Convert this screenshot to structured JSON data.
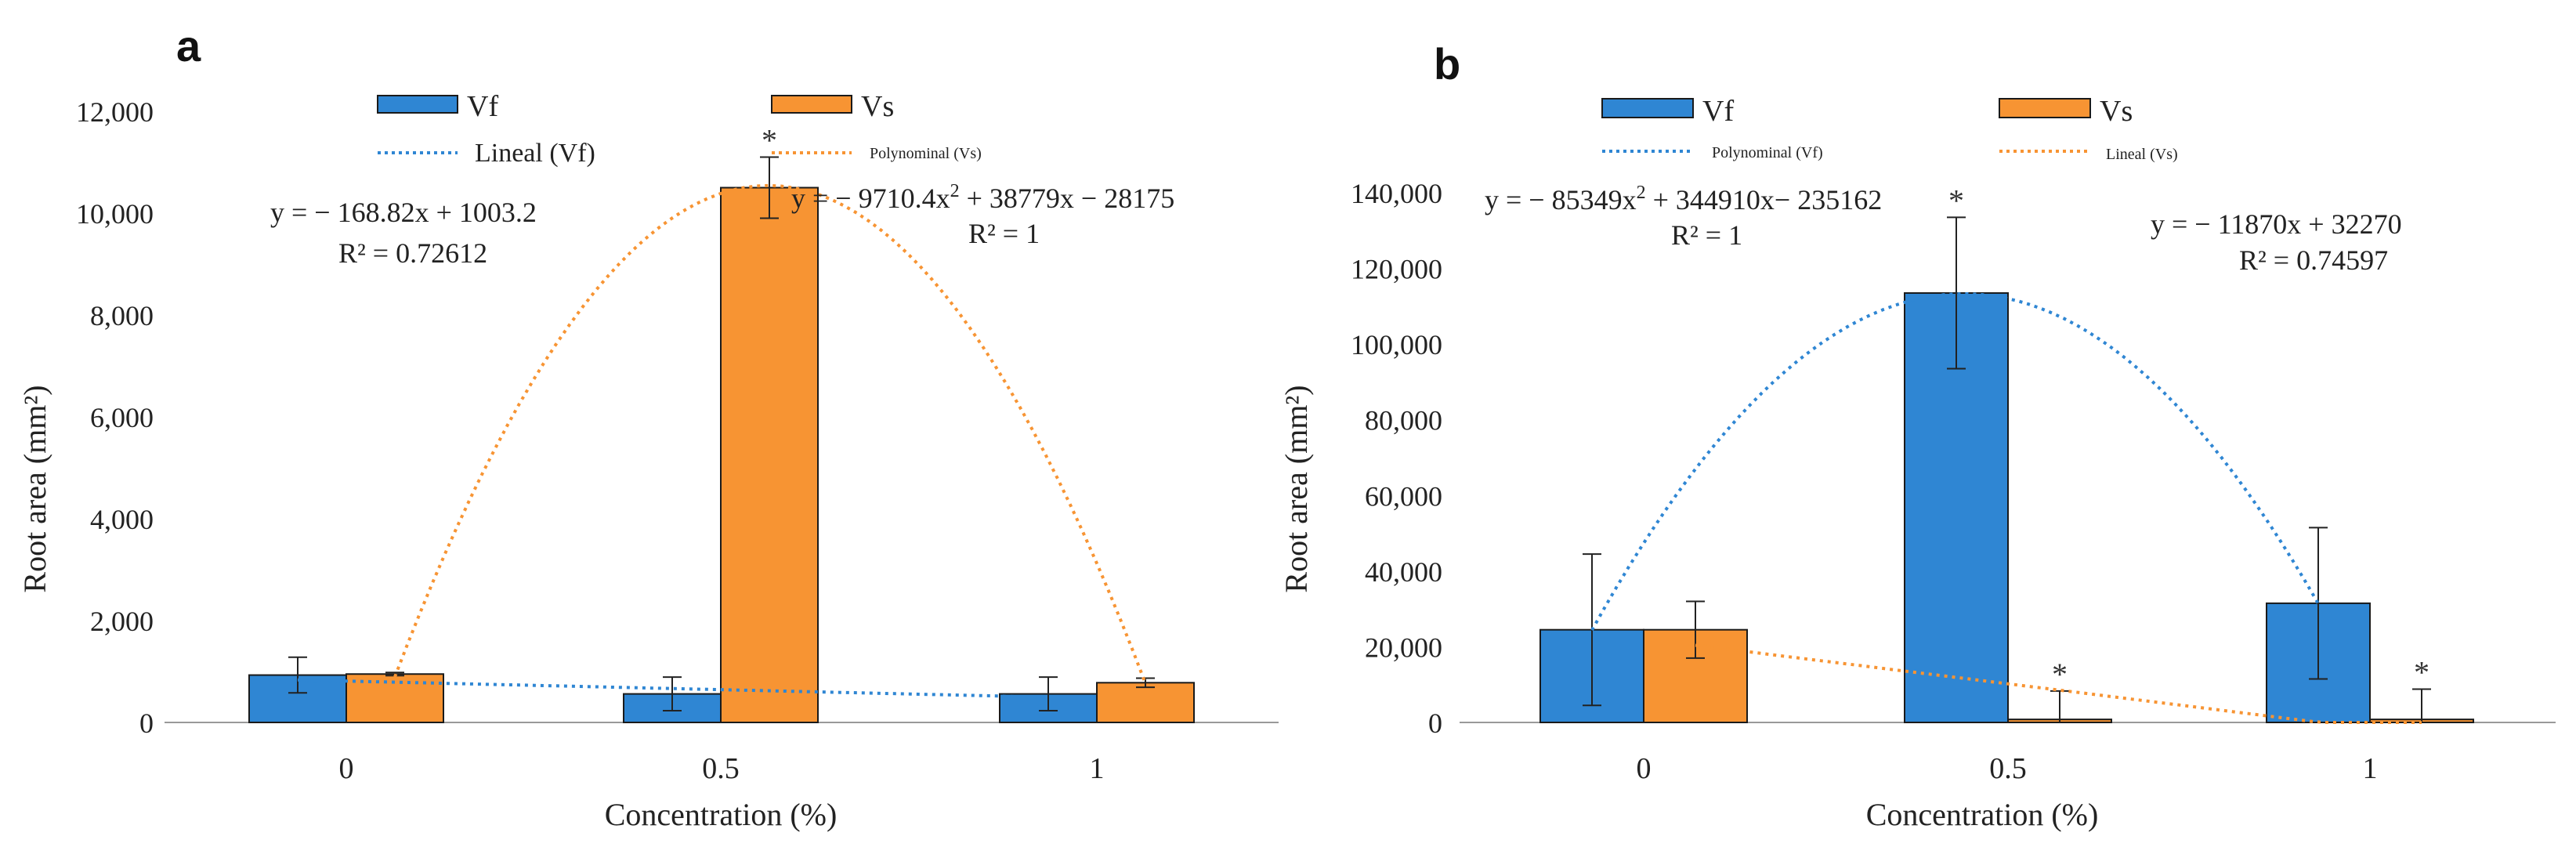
{
  "colors": {
    "vf": "#2F86D3",
    "vs": "#F79433",
    "axis": "#999999",
    "text": "#222222"
  },
  "chart_data": [
    {
      "panel_label": "a",
      "type": "bar",
      "categories": [
        "0",
        "0.5",
        "1"
      ],
      "ylim": [
        0,
        12000
      ],
      "yticks": [
        0,
        2000,
        4000,
        6000,
        8000,
        10000,
        12000
      ],
      "ytick_labels": [
        "0",
        "2,000",
        "4,000",
        "6,000",
        "8,000",
        "10,000",
        "12,000"
      ],
      "xlabel": "Concentration (%)",
      "ylabel": "Root area (mm²)",
      "series": [
        {
          "name": "Vf",
          "color": "#2F86D3",
          "values": [
            930,
            560,
            560
          ],
          "errors": [
            350,
            330,
            330
          ],
          "significance": [
            "",
            "",
            ""
          ]
        },
        {
          "name": "Vs",
          "color": "#F79433",
          "values": [
            950,
            10500,
            780
          ],
          "errors": [
            30,
            600,
            90
          ],
          "significance": [
            "",
            "*",
            ""
          ]
        }
      ],
      "trendlines": [
        {
          "name": "Lineal (Vf)",
          "series": "Vf",
          "kind": "linear",
          "color": "#2F86D3",
          "coef": [
            1003.2,
            -168.82
          ],
          "equation": {
            "prefix": "y = − 168.82x + 1003.2",
            "sup": "",
            "suffix": ""
          },
          "r2": "R² = 0.72612"
        },
        {
          "name": "Polynominal (Vs)",
          "series": "Vs",
          "kind": "poly2",
          "color": "#F79433",
          "coef": [
            -28175,
            38779,
            -9710.4
          ],
          "equation": {
            "prefix": "y = − 9710.4x",
            "sup": "2",
            "suffix": " + 38779x − 28175"
          },
          "r2": "R² = 1"
        }
      ],
      "legend_labels": {
        "vf": "Vf",
        "vs": "Vs",
        "trend1": "Lineal (Vf)",
        "trend2": "Polynominal (Vs)"
      }
    },
    {
      "panel_label": "b",
      "type": "bar",
      "categories": [
        "0",
        "0.5",
        "1"
      ],
      "ylim": [
        0,
        140000
      ],
      "yticks": [
        0,
        20000,
        40000,
        60000,
        80000,
        100000,
        120000,
        140000
      ],
      "ytick_labels": [
        "0",
        "20,000",
        "40,000",
        "60,000",
        "80,000",
        "100,000",
        "120,000",
        "140,000"
      ],
      "xlabel": "Concentration (%)",
      "ylabel": "Root area (mm²)",
      "series": [
        {
          "name": "Vf",
          "color": "#2F86D3",
          "values": [
            24500,
            113500,
            31500
          ],
          "errors": [
            20000,
            20000,
            20000
          ],
          "significance": [
            "",
            "*",
            ""
          ]
        },
        {
          "name": "Vs",
          "color": "#F79433",
          "values": [
            24500,
            800,
            800
          ],
          "errors": [
            7500,
            7500,
            8000
          ],
          "significance": [
            "",
            "*",
            "*"
          ]
        }
      ],
      "trendlines": [
        {
          "name": "Polynominal (Vf)",
          "series": "Vf",
          "kind": "poly2",
          "color": "#2F86D3",
          "coef": [
            -235162,
            344910,
            -85349
          ],
          "equation": {
            "prefix": "y = − 85349x",
            "sup": "2",
            "suffix": " + 344910x− 235162"
          },
          "r2": "R² = 1"
        },
        {
          "name": "Lineal (Vs)",
          "series": "Vs",
          "kind": "linear",
          "color": "#F79433",
          "coef": [
            32270,
            -11870
          ],
          "equation": {
            "prefix": "y = − 11870x + 32270",
            "sup": "",
            "suffix": ""
          },
          "r2": "R² = 0.74597"
        }
      ],
      "legend_labels": {
        "vf": "Vf",
        "vs": "Vs",
        "trend1": "Polynominal (Vf)",
        "trend2": "Lineal (Vs)"
      }
    }
  ]
}
